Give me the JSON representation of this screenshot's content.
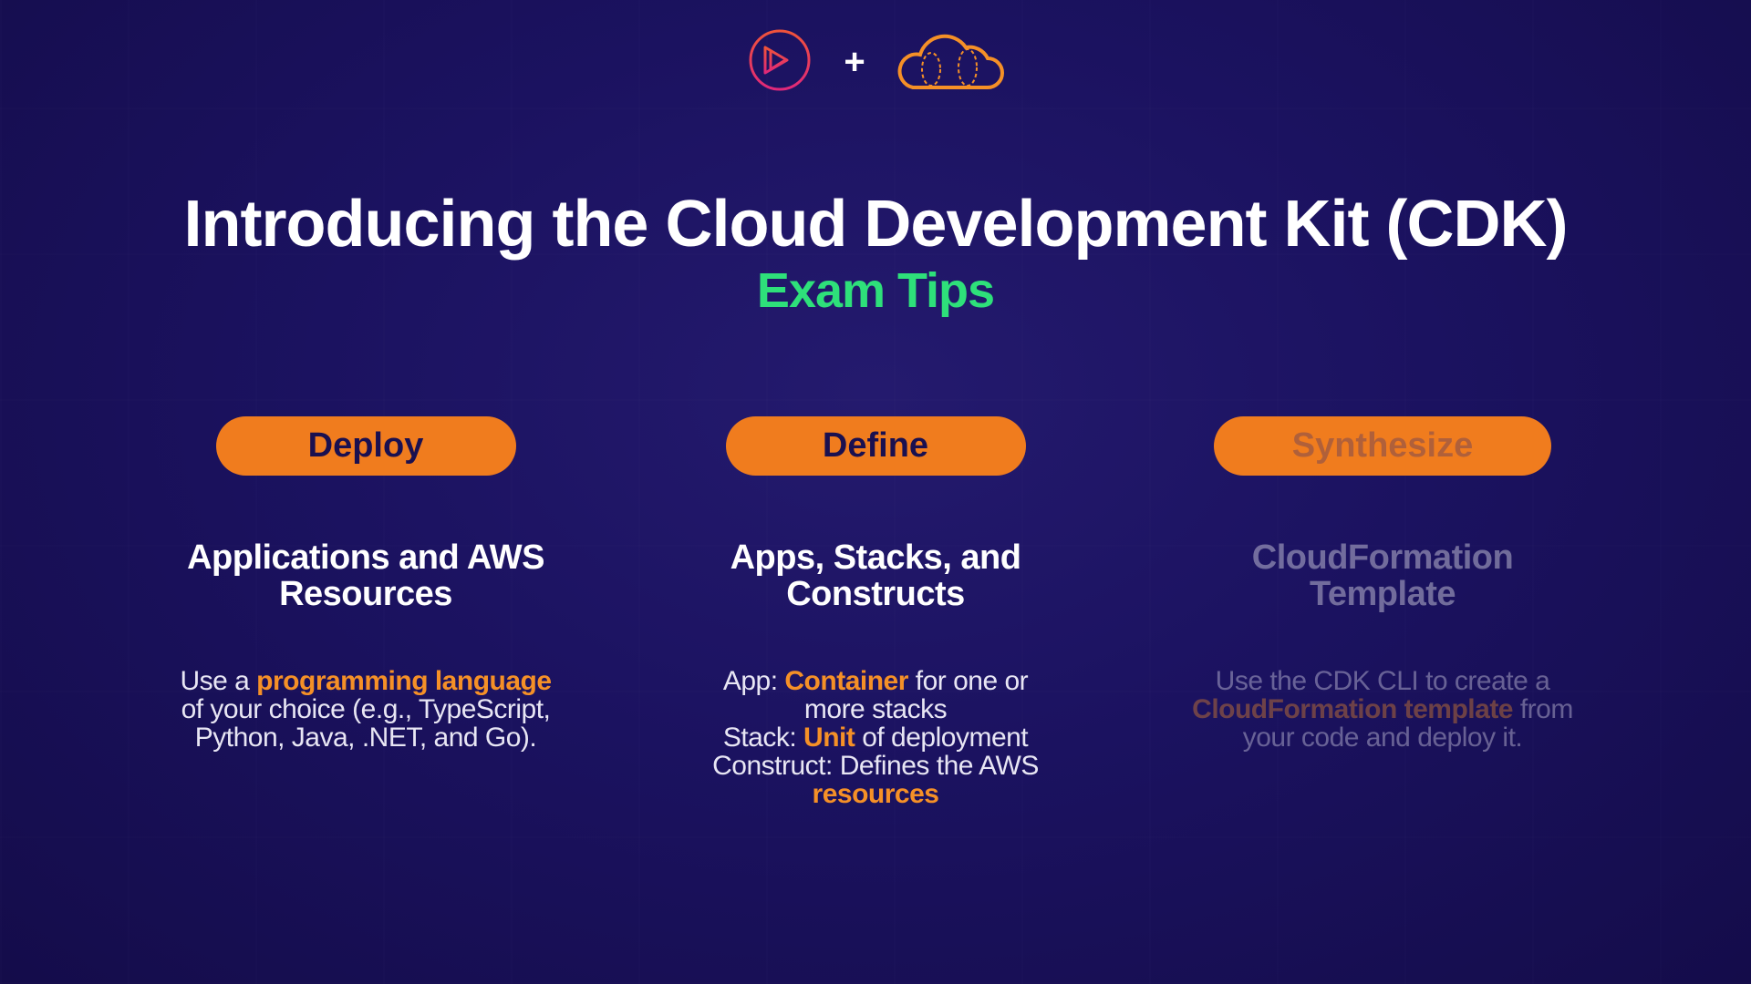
{
  "logos": {
    "left_icon": "play-circle-icon",
    "separator": "+",
    "right_icon": "cloud-icon"
  },
  "title": "Introducing the Cloud Development Kit (CDK)",
  "subtitle": "Exam Tips",
  "colors": {
    "accent": "#f07c1e",
    "subtitle": "#2ee07a",
    "background": "#1b1260"
  },
  "columns": [
    {
      "pill": "Deploy",
      "heading": "Applications and AWS Resources",
      "body": [
        {
          "t": "Use a "
        },
        {
          "t": "programming language",
          "hl": true
        },
        {
          "t": " of your choice (e.g., TypeScript, Python, Java, .NET, and Go)."
        }
      ]
    },
    {
      "pill": "Define",
      "heading": "Apps, Stacks, and Constructs",
      "body": [
        {
          "t": "App: "
        },
        {
          "t": "Container",
          "hl": true
        },
        {
          "t": " for one or more stacks\nStack: "
        },
        {
          "t": "Unit",
          "hl": true
        },
        {
          "t": " of deployment\nConstruct: Defines the AWS "
        },
        {
          "t": "resources",
          "hl": true
        }
      ]
    },
    {
      "pill": "Synthesize",
      "heading": "CloudFormation Template",
      "body": [
        {
          "t": "Use the CDK CLI to create a "
        },
        {
          "t": "CloudFormation template",
          "hl": true
        },
        {
          "t": " from your code and deploy it."
        }
      ]
    }
  ]
}
